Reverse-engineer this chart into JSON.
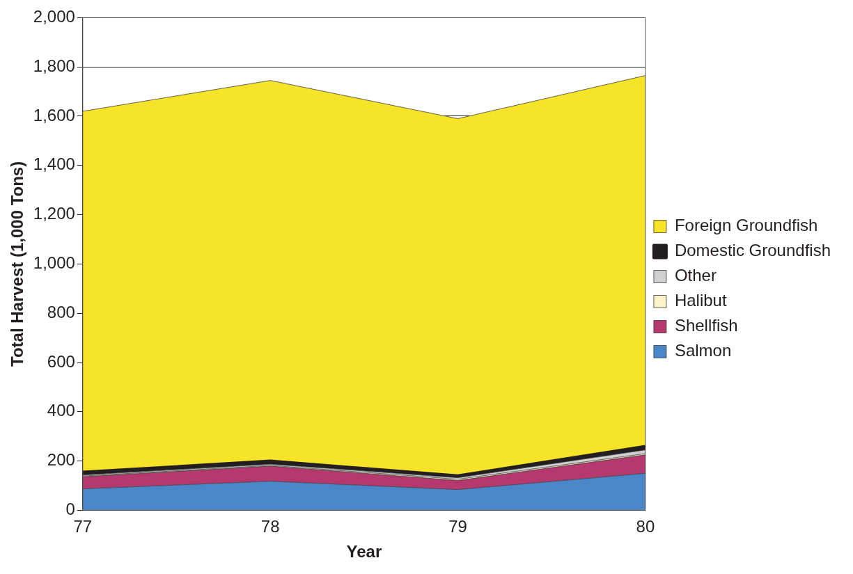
{
  "chart_data": {
    "type": "area",
    "stacked": true,
    "xlabel": "Year",
    "ylabel": "Total Harvest (1,000 Tons)",
    "x": [
      77,
      78,
      79,
      80
    ],
    "xlim": [
      77,
      80
    ],
    "xticks": [
      77,
      78,
      79,
      80
    ],
    "ylim": [
      0,
      2000
    ],
    "yticks": [
      {
        "value": 0,
        "label": "0"
      },
      {
        "value": 200,
        "label": "200"
      },
      {
        "value": 400,
        "label": "400"
      },
      {
        "value": 600,
        "label": "600"
      },
      {
        "value": 800,
        "label": "800"
      },
      {
        "value": 1000,
        "label": "1,000"
      },
      {
        "value": 1200,
        "label": "1,200"
      },
      {
        "value": 1400,
        "label": "1,400"
      },
      {
        "value": 1600,
        "label": "1,600"
      },
      {
        "value": 1800,
        "label": "1,800"
      },
      {
        "value": 2000,
        "label": "2,000"
      }
    ],
    "grid": "y",
    "legend": "right",
    "series": [
      {
        "name": "Salmon",
        "color": "#4a86c8",
        "values": [
          87,
          118,
          84,
          150
        ]
      },
      {
        "name": "Shellfish",
        "color": "#b5396f",
        "values": [
          49,
          61,
          37,
          75
        ]
      },
      {
        "name": "Halibut",
        "color": "#fdf3c8",
        "values": [
          3,
          3,
          5,
          5
        ]
      },
      {
        "name": "Other",
        "color": "#d0d0d0",
        "values": [
          4,
          5,
          6,
          15
        ]
      },
      {
        "name": "Domestic Groundfish",
        "color": "#231f20",
        "values": [
          12,
          13,
          8,
          15
        ]
      },
      {
        "name": "Foreign Groundfish",
        "color": "#f7e327",
        "values": [
          1465,
          1545,
          1450,
          1505
        ]
      }
    ]
  }
}
